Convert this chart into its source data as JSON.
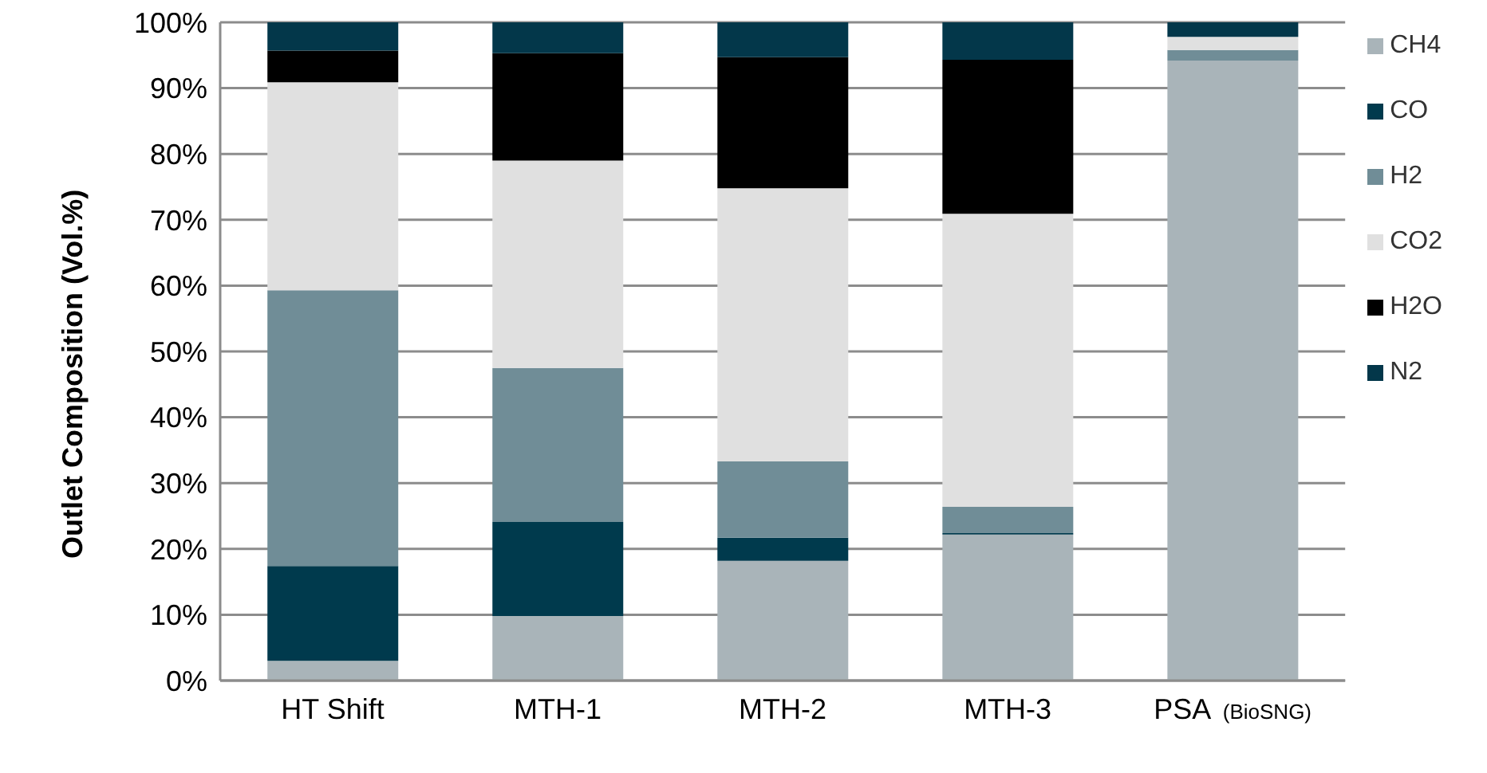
{
  "chart_data": {
    "type": "bar",
    "stacked": true,
    "ylabel": "Outlet  Composition (Vol.%)",
    "categories": [
      "HT Shift",
      "MTH-1",
      "MTH-2",
      "MTH-3",
      "PSA (BioSNG)"
    ],
    "series": [
      {
        "name": "CH4",
        "color": "#a9b4b9",
        "values": [
          3.0,
          9.8,
          18.2,
          22.2,
          94.2
        ]
      },
      {
        "name": "CO",
        "color": "#003a4d",
        "values": [
          14.4,
          14.3,
          3.5,
          0.2,
          0
        ]
      },
      {
        "name": "H2",
        "color": "#708d97",
        "values": [
          41.9,
          23.4,
          11.6,
          4.0,
          1.6
        ]
      },
      {
        "name": "CO2",
        "color": "#e0e0e0",
        "values": [
          31.6,
          31.5,
          41.5,
          44.5,
          2.0
        ]
      },
      {
        "name": "H2O",
        "color": "#000000",
        "values": [
          4.8,
          16.3,
          19.9,
          23.4,
          0
        ]
      },
      {
        "name": "N2",
        "color": "#03374a",
        "values": [
          4.3,
          4.7,
          5.3,
          5.7,
          2.2
        ]
      }
    ],
    "ylim": [
      0,
      100
    ],
    "yticks": [
      {
        "value": 0,
        "label": "0%"
      },
      {
        "value": 10,
        "label": "10%"
      },
      {
        "value": 20,
        "label": "20%"
      },
      {
        "value": 30,
        "label": "30%"
      },
      {
        "value": 40,
        "label": "40%"
      },
      {
        "value": 50,
        "label": "50%"
      },
      {
        "value": 60,
        "label": "60%"
      },
      {
        "value": 70,
        "label": "70%"
      },
      {
        "value": 80,
        "label": "80%"
      },
      {
        "value": 90,
        "label": "90%"
      },
      {
        "value": 100,
        "label": "100%"
      }
    ],
    "grid": "y",
    "legend": "right"
  }
}
